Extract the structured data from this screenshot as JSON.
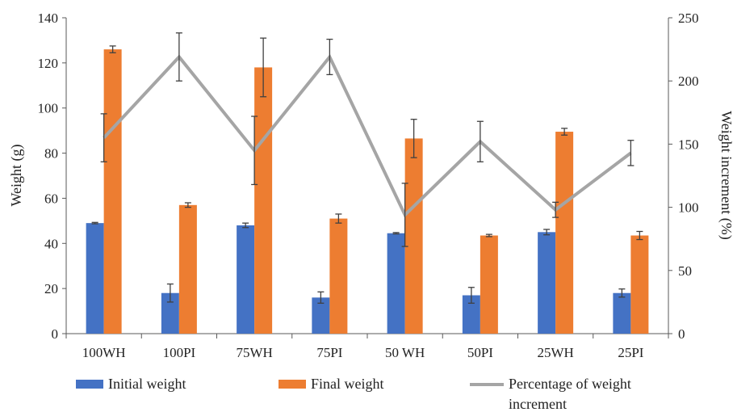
{
  "chart_data": {
    "type": "bar",
    "categories": [
      "100WH",
      "100PI",
      "75WH",
      "75PI",
      "50 WH",
      "50PI",
      "25WH",
      "25PI"
    ],
    "series": [
      {
        "name": "Initial weight",
        "kind": "bar",
        "axis": "left",
        "color": "#4472C4",
        "values": [
          49,
          18,
          48,
          16,
          44.5,
          17,
          45,
          18
        ],
        "errors": [
          0.3,
          4,
          1,
          2.5,
          0.3,
          3.5,
          1.2,
          1.8
        ]
      },
      {
        "name": "Final weight",
        "kind": "bar",
        "axis": "left",
        "color": "#ED7D31",
        "values": [
          126,
          57,
          118,
          51,
          86.5,
          43.5,
          89.5,
          43.5
        ],
        "errors": [
          1.5,
          1,
          13,
          2,
          8.5,
          0.5,
          1.5,
          1.8
        ]
      },
      {
        "name": "Percentage of weight increment",
        "kind": "line",
        "axis": "right",
        "color": "#A5A5A5",
        "values": [
          155,
          219,
          145,
          219,
          94,
          152,
          98,
          143
        ],
        "errors": [
          19,
          19,
          27,
          14,
          25,
          16,
          6,
          10
        ]
      }
    ],
    "ylabel": "Weight (g)",
    "y2label": "Weight increment (%)",
    "ylim": [
      0,
      140
    ],
    "yticks": [
      0,
      20,
      40,
      60,
      80,
      100,
      120,
      140
    ],
    "y2lim": [
      0,
      250
    ],
    "y2ticks": [
      0,
      50,
      100,
      150,
      200,
      250
    ],
    "grid": false,
    "legend_position": "bottom",
    "legend_labels": [
      "Initial weight",
      "Final weight",
      "Percentage of weight",
      "increment"
    ]
  }
}
